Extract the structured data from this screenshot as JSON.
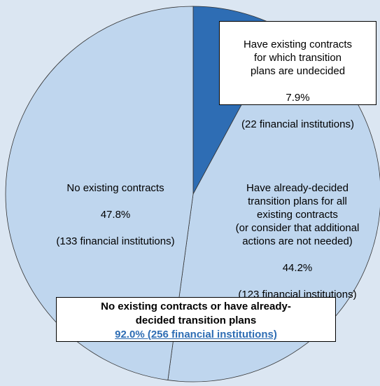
{
  "chart_data": {
    "type": "pie",
    "categories": [
      "Have existing contracts\nfor which transition\nplans are undecided",
      "Have already-decided\ntransition plans for all\nexisting contracts\n(or consider that additional\nactions are not needed)",
      "No existing contracts"
    ],
    "values": [
      7.9,
      44.2,
      47.8
    ],
    "value_labels": [
      "7.9%",
      "44.2%",
      "47.8%"
    ],
    "count_labels": [
      "(22 financial institutions)",
      "(123 financial institutions)",
      "(133 financial institutions)"
    ],
    "colors": [
      "#2e6db4",
      "#bfd6ee",
      "#bfd6ee"
    ],
    "direction": "clockwise",
    "annotation": {
      "text": "No existing contracts or have already-decided transition plans",
      "value_label": "92.0% (256 financial institutions)"
    }
  }
}
